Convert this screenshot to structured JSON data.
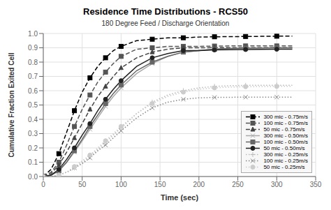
{
  "chart_data": {
    "type": "line",
    "title": "Residence Time Distributions - RCS50",
    "subtitle": "180 Degree Feed / Discharge Orientation",
    "xlabel": "Time (sec)",
    "ylabel": "Cumulative Fraction Exited Cell",
    "xlim": [
      0,
      350
    ],
    "ylim": [
      0,
      1.0
    ],
    "xticks": [
      0,
      50,
      100,
      150,
      200,
      250,
      300,
      350
    ],
    "yticks": [
      {
        "value": 0,
        "label": "0.0"
      },
      0.1,
      0.2,
      0.3,
      0.4,
      0.5,
      0.6,
      0.7,
      0.8,
      0.9,
      {
        "value": 1.0,
        "label": "1.0"
      }
    ],
    "grid": true,
    "legend": "lower right",
    "x": [
      0,
      10,
      20,
      30,
      40,
      50,
      60,
      70,
      80,
      90,
      100,
      120,
      140,
      160,
      180,
      200,
      220,
      240,
      260,
      280,
      300,
      320
    ],
    "series": [
      {
        "name": "300 mic - 0.75m/s",
        "color": "#000000",
        "line_style": "dashed",
        "marker": "square",
        "values": [
          0,
          0.05,
          0.16,
          0.31,
          0.46,
          0.59,
          0.69,
          0.77,
          0.83,
          0.88,
          0.91,
          0.95,
          0.96,
          0.97,
          0.97,
          0.975,
          0.977,
          0.978,
          0.979,
          0.98,
          0.981,
          0.982
        ]
      },
      {
        "name": "100 mic - 0.75m/s",
        "color": "#555555",
        "line_style": "dashed",
        "marker": "square",
        "values": [
          0,
          0.03,
          0.1,
          0.22,
          0.35,
          0.47,
          0.57,
          0.66,
          0.73,
          0.79,
          0.84,
          0.89,
          0.9,
          0.91,
          0.91,
          0.91,
          0.912,
          0.913,
          0.913,
          0.913,
          0.913,
          0.913
        ]
      },
      {
        "name": "50 mic - 0.75m/s",
        "color": "#444444",
        "line_style": "dashed",
        "marker": "triangle",
        "values": [
          0,
          0.02,
          0.08,
          0.17,
          0.27,
          0.37,
          0.47,
          0.56,
          0.63,
          0.7,
          0.76,
          0.83,
          0.87,
          0.89,
          0.9,
          0.9,
          0.901,
          0.901,
          0.901,
          0.901,
          0.901,
          0.901
        ]
      },
      {
        "name": "300 mic - 0.50m/s",
        "color": "#aaaaaa",
        "line_style": "solid",
        "marker": "x",
        "values": [
          0,
          0.01,
          0.04,
          0.1,
          0.17,
          0.25,
          0.33,
          0.41,
          0.49,
          0.56,
          0.62,
          0.72,
          0.79,
          0.84,
          0.87,
          0.88,
          0.89,
          0.895,
          0.898,
          0.899,
          0.9,
          0.9
        ]
      },
      {
        "name": "100 mic - 0.50m/s",
        "color": "#666666",
        "line_style": "solid",
        "marker": "square",
        "values": [
          0,
          0.01,
          0.04,
          0.1,
          0.18,
          0.26,
          0.35,
          0.43,
          0.51,
          0.58,
          0.64,
          0.74,
          0.8,
          0.84,
          0.87,
          0.88,
          0.89,
          0.895,
          0.898,
          0.899,
          0.9,
          0.9
        ]
      },
      {
        "name": "50 mic - 0.50m/s",
        "color": "#222222",
        "line_style": "solid",
        "marker": "circle",
        "values": [
          0,
          0.01,
          0.05,
          0.12,
          0.2,
          0.29,
          0.37,
          0.46,
          0.54,
          0.61,
          0.67,
          0.77,
          0.83,
          0.86,
          0.88,
          0.88,
          0.885,
          0.887,
          0.888,
          0.889,
          0.89,
          0.89
        ]
      },
      {
        "name": "300 mic - 0.25m/s",
        "color": "#bbbbbb",
        "line_style": "dotted",
        "marker": "plus",
        "values": [
          0,
          0.0,
          0.01,
          0.03,
          0.06,
          0.1,
          0.14,
          0.19,
          0.24,
          0.29,
          0.34,
          0.44,
          0.52,
          0.57,
          0.6,
          0.62,
          0.63,
          0.635,
          0.637,
          0.638,
          0.638,
          0.638
        ]
      },
      {
        "name": "100 mic - 0.25m/s",
        "color": "#888888",
        "line_style": "dotted",
        "marker": "x",
        "values": [
          0,
          0.0,
          0.01,
          0.03,
          0.06,
          0.09,
          0.13,
          0.18,
          0.22,
          0.27,
          0.32,
          0.41,
          0.48,
          0.52,
          0.54,
          0.55,
          0.553,
          0.554,
          0.555,
          0.555,
          0.555,
          0.555
        ]
      },
      {
        "name": "50 mic - 0.25m/s",
        "color": "#cccccc",
        "line_style": "dotted",
        "marker": "circle",
        "values": [
          0,
          0.0,
          0.01,
          0.03,
          0.07,
          0.11,
          0.15,
          0.2,
          0.25,
          0.3,
          0.35,
          0.44,
          0.51,
          0.56,
          0.59,
          0.61,
          0.62,
          0.625,
          0.628,
          0.629,
          0.63,
          0.63
        ]
      }
    ]
  }
}
